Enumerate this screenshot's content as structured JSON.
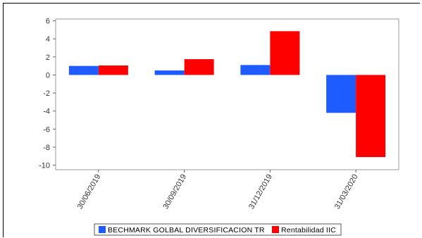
{
  "chart_data": {
    "type": "bar",
    "title": "",
    "xlabel": "",
    "ylabel": "",
    "categories": [
      "30/06/2019",
      "30/09/2019",
      "31/12/2019",
      "31/03/2020"
    ],
    "ylim": [
      -10.5,
      6.2
    ],
    "yticks": [
      6,
      4,
      2,
      0,
      -2,
      -4,
      -6,
      -8,
      -10
    ],
    "grid": false,
    "legend_position": "bottom",
    "series": [
      {
        "name": "BECHMARK GOLBAL DIVERSIFICACION TR",
        "color": "#1f5cff",
        "values": [
          1.0,
          0.5,
          1.1,
          -4.2
        ]
      },
      {
        "name": "Rentabilidad IIC",
        "color": "#ff0000",
        "values": [
          1.05,
          1.75,
          4.85,
          -9.1
        ]
      }
    ]
  }
}
